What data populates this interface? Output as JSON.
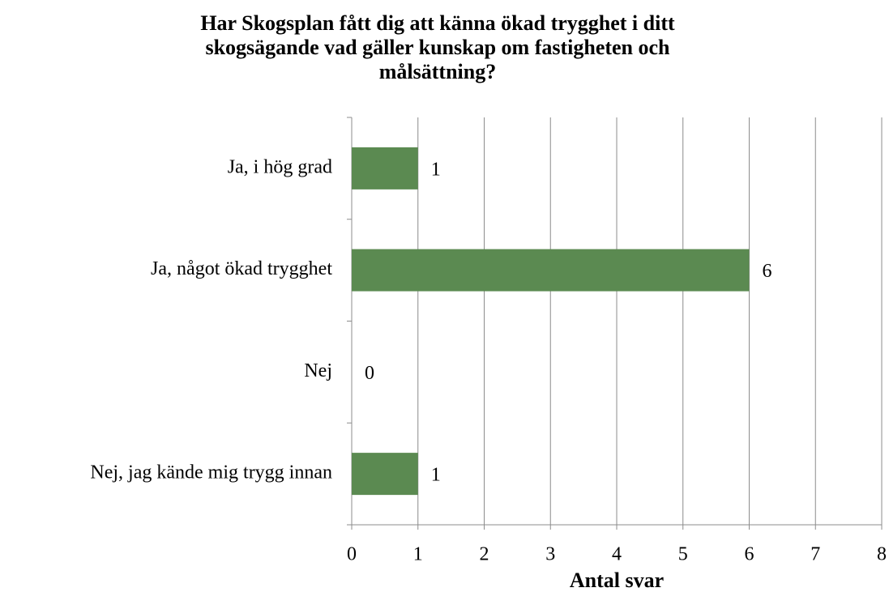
{
  "chart_data": {
    "type": "bar",
    "orientation": "horizontal",
    "title": "Har Skogsplan fått dig att känna ökad trygghet i ditt skogsägande vad gäller kunskap om fastigheten och målsättning?",
    "categories": [
      "Ja, i hög grad",
      "Ja, något ökad trygghet",
      "Nej",
      "Nej, jag kände mig trygg innan"
    ],
    "values": [
      1,
      6,
      0,
      1
    ],
    "color": "#5b8a51",
    "xlabel": "Antal svar",
    "xlim": [
      0,
      8
    ],
    "xticks": [
      0,
      1,
      2,
      3,
      4,
      5,
      6,
      7,
      8
    ],
    "grid": true
  }
}
